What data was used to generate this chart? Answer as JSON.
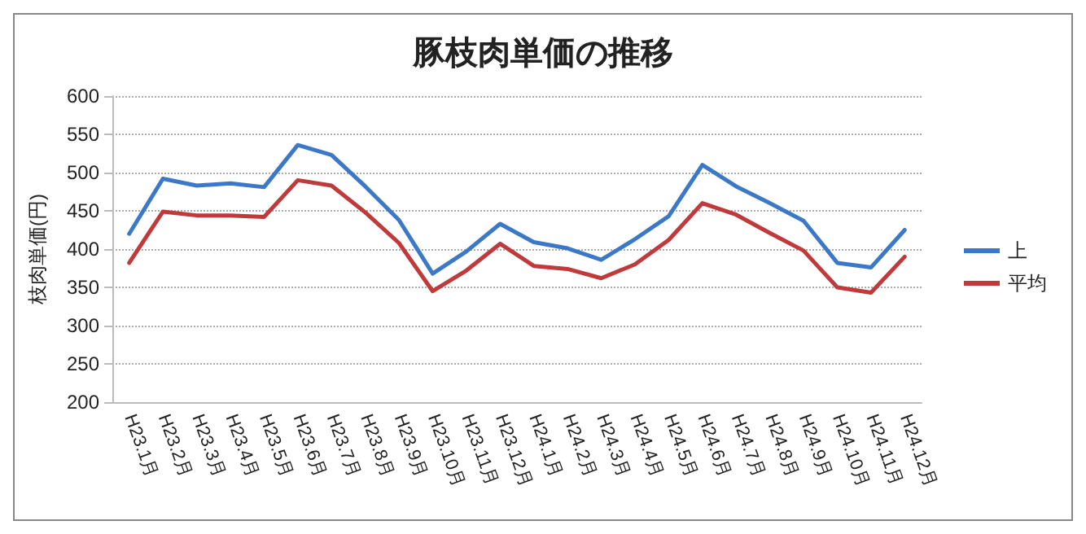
{
  "chart_data": {
    "type": "line",
    "title": "豚枝肉単価の推移",
    "ylabel": "枝肉単価(円)",
    "categories": [
      "H23.1月",
      "H23.2月",
      "H23.3月",
      "H23.4月",
      "H23.5月",
      "H23.6月",
      "H23.7月",
      "H23.8月",
      "H23.9月",
      "H23.10月",
      "H23.11月",
      "H23.12月",
      "H24.1月",
      "H24.2月",
      "H24.3月",
      "H24.4月",
      "H24.5月",
      "H24.6月",
      "H24.7月",
      "H24.8月",
      "H24.9月",
      "H24.10月",
      "H24.11月",
      "H24.12月"
    ],
    "series": [
      {
        "name": "上",
        "color": "#3c78c8",
        "values": [
          420,
          492,
          483,
          486,
          481,
          536,
          523,
          482,
          438,
          368,
          397,
          433,
          409,
          401,
          386,
          413,
          443,
          510,
          482,
          460,
          437,
          382,
          376,
          425
        ]
      },
      {
        "name": "平均",
        "color": "#c0393b",
        "values": [
          382,
          449,
          444,
          444,
          442,
          490,
          483,
          448,
          408,
          345,
          372,
          407,
          378,
          374,
          362,
          380,
          412,
          460,
          445,
          421,
          398,
          350,
          343,
          390
        ]
      }
    ],
    "ylim": [
      200,
      600
    ],
    "yticks": [
      200,
      250,
      300,
      350,
      400,
      450,
      500,
      550,
      600
    ],
    "grid": "y",
    "legend": "right",
    "marker": "none",
    "line_style": "solid"
  }
}
